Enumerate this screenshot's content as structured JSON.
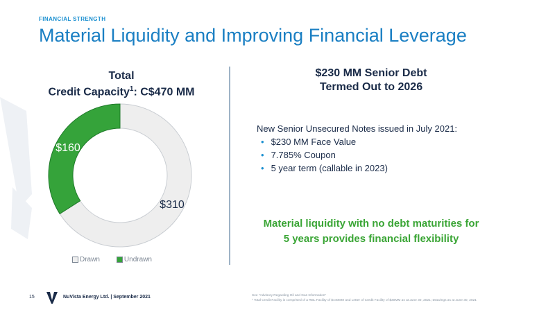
{
  "kicker": "FINANCIAL STRENGTH",
  "title": "Material Liquidity and Improving Financial Leverage",
  "left_heading": {
    "line1": "Total",
    "line2_prefix": "Credit Capacity",
    "sup": "1",
    "line2_suffix": ": C$470 MM"
  },
  "right_heading": {
    "line1": "$230 MM Senior Debt",
    "line2": "Termed Out to 2026"
  },
  "notes": {
    "intro": "New Senior Unsecured Notes issued in July 2021:",
    "bullets": [
      "$230 MM Face Value",
      "7.785% Coupon",
      "5 year term (callable in 2023)"
    ]
  },
  "callout": {
    "line1": "Material liquidity with no debt maturities for",
    "line2": "5 years provides financial flexibility"
  },
  "footer": {
    "page": "15",
    "company": "NuVista Energy Ltd. | September 2021",
    "note1": "See \"Advisory Regarding Oil and Gas Information\"",
    "note2": "¹ Total Credit Facility is comprised of a RBL Facility of $440MM and Letter of Credit Facility of $30MM as at June 30, 2021; Drawings as at June 30, 2021"
  },
  "chart_data": {
    "type": "pie",
    "donut": true,
    "categories": [
      "Drawn",
      "Undrawn"
    ],
    "values": [
      310,
      160
    ],
    "labels": [
      "$310",
      "$160"
    ],
    "colors": [
      "#eeeeee",
      "#35a33a"
    ],
    "legend_position": "bottom"
  },
  "colors": {
    "accent_blue": "#1a7fc3",
    "navy": "#1a2b48",
    "green": "#3aa535"
  }
}
